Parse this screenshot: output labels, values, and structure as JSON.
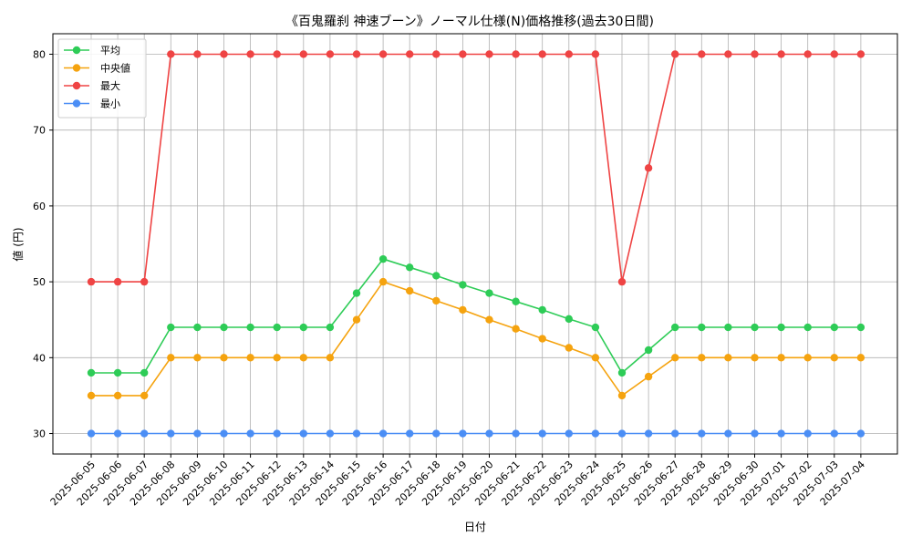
{
  "chart_data": {
    "type": "line",
    "title": "《百鬼羅刹 神速ブーン》ノーマル仕様(N)価格推移(過去30日間)",
    "xlabel": "日付",
    "ylabel": "値 (円)",
    "ylim": [
      27.3,
      82.7
    ],
    "yticks": [
      30,
      40,
      50,
      60,
      70,
      80
    ],
    "grid": true,
    "legend_position": "top-left",
    "categories": [
      "2025-06-05",
      "2025-06-06",
      "2025-06-07",
      "2025-06-08",
      "2025-06-09",
      "2025-06-10",
      "2025-06-11",
      "2025-06-12",
      "2025-06-13",
      "2025-06-14",
      "2025-06-15",
      "2025-06-16",
      "2025-06-17",
      "2025-06-18",
      "2025-06-19",
      "2025-06-20",
      "2025-06-21",
      "2025-06-22",
      "2025-06-23",
      "2025-06-24",
      "2025-06-25",
      "2025-06-26",
      "2025-06-27",
      "2025-06-28",
      "2025-06-29",
      "2025-06-30",
      "2025-07-01",
      "2025-07-02",
      "2025-07-03",
      "2025-07-04"
    ],
    "series": [
      {
        "name": "平均",
        "color": "#2ecc57",
        "values": [
          38,
          38,
          38,
          44,
          44,
          44,
          44,
          44,
          44,
          44,
          48.5,
          53,
          51.9,
          50.8,
          49.6,
          48.5,
          47.4,
          46.3,
          45.1,
          44,
          38,
          41,
          44,
          44,
          44,
          44,
          44,
          44,
          44,
          44
        ]
      },
      {
        "name": "中央値",
        "color": "#f5a30f",
        "values": [
          35,
          35,
          35,
          40,
          40,
          40,
          40,
          40,
          40,
          40,
          45,
          50,
          48.8,
          47.5,
          46.3,
          45,
          43.8,
          42.5,
          41.3,
          40,
          35,
          37.5,
          40,
          40,
          40,
          40,
          40,
          40,
          40,
          40
        ]
      },
      {
        "name": "最大",
        "color": "#ef4444",
        "values": [
          50,
          50,
          50,
          80,
          80,
          80,
          80,
          80,
          80,
          80,
          80,
          80,
          80,
          80,
          80,
          80,
          80,
          80,
          80,
          80,
          50,
          65,
          80,
          80,
          80,
          80,
          80,
          80,
          80,
          80
        ]
      },
      {
        "name": "最小",
        "color": "#4b8ef5",
        "values": [
          30,
          30,
          30,
          30,
          30,
          30,
          30,
          30,
          30,
          30,
          30,
          30,
          30,
          30,
          30,
          30,
          30,
          30,
          30,
          30,
          30,
          30,
          30,
          30,
          30,
          30,
          30,
          30,
          30,
          30
        ]
      }
    ]
  }
}
